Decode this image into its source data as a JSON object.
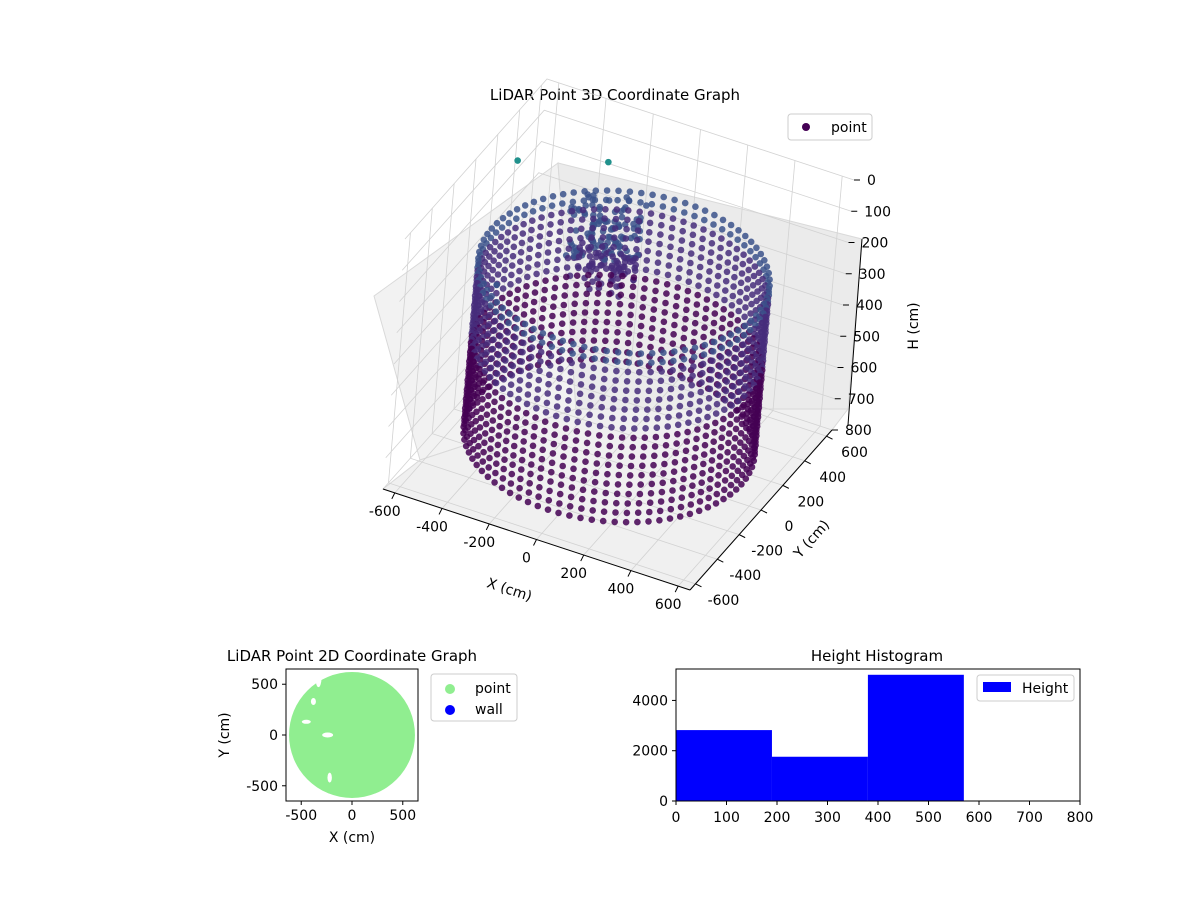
{
  "chart_data": [
    {
      "type": "scatter",
      "title": "LiDAR Point 3D Coordinate Graph",
      "xlabel": "X (cm)",
      "ylabel": "Y (cm)",
      "zlabel": "H (cm)",
      "xlim": [
        -650,
        650
      ],
      "ylim": [
        -650,
        650
      ],
      "zlim": [
        0,
        800
      ],
      "z_inverted": true,
      "x_ticks": [
        "-600",
        "-400",
        "-200",
        "0",
        "200",
        "400",
        "600"
      ],
      "y_ticks": [
        "-600",
        "-400",
        "-200",
        "0",
        "200",
        "400",
        "600"
      ],
      "z_ticks": [
        "0",
        "100",
        "200",
        "300",
        "400",
        "500",
        "600",
        "700",
        "800"
      ],
      "legend": {
        "position": "upper-right",
        "entries": [
          "point"
        ]
      },
      "colormap": [
        "#440154",
        "#3b528b",
        "#21918c"
      ],
      "series": [
        {
          "name": "point",
          "shape": "cylindrical wall ring",
          "ring_radius": 560,
          "height_range": [
            200,
            760
          ],
          "interior_cluster": {
            "x": -150,
            "y": 150,
            "height_range": [
              80,
              330
            ]
          }
        }
      ]
    },
    {
      "type": "scatter",
      "title": "LiDAR Point 2D Coordinate Graph",
      "xlabel": "X (cm)",
      "ylabel": "Y (cm)",
      "xlim": [
        -650,
        650
      ],
      "ylim": [
        -650,
        650
      ],
      "x_ticks": [
        "-500",
        "0",
        "500"
      ],
      "y_ticks": [
        "-500",
        "0",
        "500"
      ],
      "legend": {
        "position": "outside-right",
        "entries": [
          "point",
          "wall"
        ]
      },
      "series": [
        {
          "name": "point",
          "color": "#90ee90",
          "fill_radius": 620
        },
        {
          "name": "wall",
          "color": "#0000ff"
        }
      ]
    },
    {
      "type": "bar",
      "subtype": "histogram",
      "title": "Height Histogram",
      "xlim": [
        0,
        800
      ],
      "ylim": [
        0,
        5250
      ],
      "x_ticks": [
        "0",
        "100",
        "200",
        "300",
        "400",
        "500",
        "600",
        "700",
        "800"
      ],
      "y_ticks": [
        "0",
        "2000",
        "4000"
      ],
      "bins": [
        [
          0,
          190
        ],
        [
          190,
          380
        ],
        [
          380,
          570
        ]
      ],
      "values": [
        2820,
        1760,
        5020
      ],
      "legend": {
        "position": "upper-right",
        "entries": [
          "Height"
        ]
      },
      "color": "#0000ff",
      "series": [
        {
          "name": "Height",
          "values": [
            2820,
            1760,
            5020
          ]
        }
      ]
    }
  ]
}
